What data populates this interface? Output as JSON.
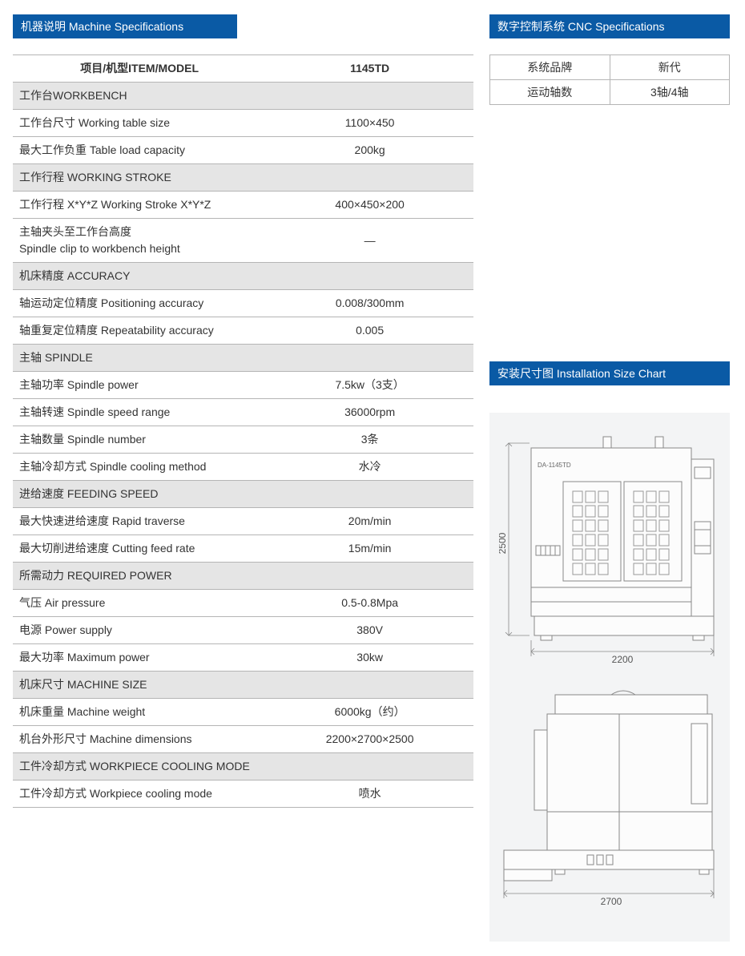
{
  "left": {
    "header": "机器说明  Machine Specifications",
    "th_item": "项目/机型ITEM/MODEL",
    "th_model": "1145TD",
    "rows": [
      {
        "type": "section",
        "label": "工作台WORKBENCH"
      },
      {
        "type": "data",
        "label": "工作台尺寸  Working table size",
        "value": "1100×450"
      },
      {
        "type": "data",
        "label": "最大工作负重  Table load capacity",
        "value": "200kg"
      },
      {
        "type": "section",
        "label": "工作行程  WORKING STROKE"
      },
      {
        "type": "data",
        "label": "工作行程 X*Y*Z Working Stroke X*Y*Z",
        "value": "400×450×200"
      },
      {
        "type": "data",
        "label": "主轴夹头至工作台高度\nSpindle clip to workbench height",
        "value": "—"
      },
      {
        "type": "section",
        "label": "机床精度  ACCURACY"
      },
      {
        "type": "data",
        "label": "轴运动定位精度  Positioning accuracy",
        "value": "0.008/300mm"
      },
      {
        "type": "data",
        "label": "轴重复定位精度  Repeatability accuracy",
        "value": "0.005"
      },
      {
        "type": "section",
        "label": "主轴  SPINDLE"
      },
      {
        "type": "data",
        "label": "主轴功率  Spindle power",
        "value": "7.5kw（3支）"
      },
      {
        "type": "data",
        "label": "主轴转速  Spindle speed range",
        "value": "36000rpm"
      },
      {
        "type": "data",
        "label": "主轴数量  Spindle number",
        "value": "3条"
      },
      {
        "type": "data",
        "label": "主轴冷却方式  Spindle cooling method",
        "value": "水冷"
      },
      {
        "type": "section",
        "label": "进给速度  FEEDING SPEED"
      },
      {
        "type": "data",
        "label": "最大快速进给速度  Rapid traverse",
        "value": "20m/min"
      },
      {
        "type": "data",
        "label": "最大切削进给速度  Cutting feed rate",
        "value": "15m/min"
      },
      {
        "type": "section",
        "label": "所需动力  REQUIRED POWER"
      },
      {
        "type": "data",
        "label": "气压  Air pressure",
        "value": "0.5-0.8Mpa"
      },
      {
        "type": "data",
        "label": "电源  Power supply",
        "value": "380V"
      },
      {
        "type": "data",
        "label": "最大功率  Maximum power",
        "value": "30kw"
      },
      {
        "type": "section",
        "label": "机床尺寸  MACHINE SIZE"
      },
      {
        "type": "data",
        "label": "机床重量  Machine weight",
        "value": "6000kg（约）"
      },
      {
        "type": "data",
        "label": "机台外形尺寸  Machine dimensions",
        "value": "2200×2700×2500"
      },
      {
        "type": "section",
        "label": "工件冷却方式  WORKPIECE COOLING MODE"
      },
      {
        "type": "data",
        "label": "工件冷却方式  Workpiece cooling mode",
        "value": "喷水"
      }
    ]
  },
  "right": {
    "cnc_header": "数字控制系统 CNC Specifications",
    "cnc_rows": [
      {
        "label": "系统品牌",
        "value": "新代"
      },
      {
        "label": "运动轴数",
        "value": "3轴/4轴"
      }
    ],
    "install_header": "安装尺寸图  Installation Size Chart",
    "drawing": {
      "model_label": "DA-1145TD",
      "width_label": "2200",
      "height_label": "2500",
      "depth_label": "2700",
      "bg_color": "#f3f4f5",
      "line_color": "#888888",
      "fill_color": "#fcfcfc"
    }
  }
}
